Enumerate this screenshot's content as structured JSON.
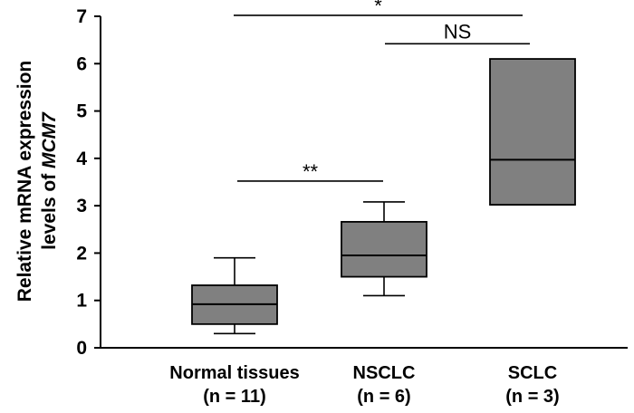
{
  "chart_data": {
    "type": "box",
    "ylabel_line1": "Relative mRNA expression",
    "ylabel_line2_prefix": "levels of ",
    "ylabel_line2_gene": "MCM7",
    "ylim": [
      0,
      7
    ],
    "yticks": [
      "0",
      "1",
      "2",
      "3",
      "4",
      "5",
      "6",
      "7"
    ],
    "box_color": "#808080",
    "categories": [
      {
        "name": "Normal tissues",
        "n_label": "(n = 11)",
        "min": 0.3,
        "q1": 0.5,
        "median": 0.92,
        "q3": 1.32,
        "max": 1.9
      },
      {
        "name": "NSCLC",
        "n_label": "(n = 6)",
        "min": 1.1,
        "q1": 1.5,
        "median": 1.95,
        "q3": 2.66,
        "max": 3.08
      },
      {
        "name": "SCLC",
        "n_label": "(n = 3)",
        "q1": 3.02,
        "median": 3.97,
        "q3": 6.1
      }
    ],
    "significance": [
      {
        "label": "**",
        "from": 0,
        "to": 1,
        "y": 3.52
      },
      {
        "label": "NS",
        "from": 1,
        "to": 2,
        "y": 6.42
      },
      {
        "label": "*",
        "from": 0,
        "to": 2,
        "y": 7.02
      }
    ]
  }
}
